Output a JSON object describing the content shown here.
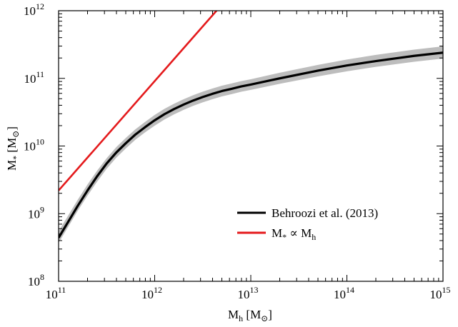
{
  "chart_data": {
    "type": "line",
    "x_scale": "log",
    "y_scale": "log",
    "xlim": [
      100000000000.0,
      1000000000000000.0
    ],
    "ylim": [
      100000000.0,
      1000000000000.0
    ],
    "x_ticks": [
      {
        "base": "10",
        "exp": "11",
        "value": 100000000000.0
      },
      {
        "base": "10",
        "exp": "12",
        "value": 1000000000000.0
      },
      {
        "base": "10",
        "exp": "13",
        "value": 10000000000000.0
      },
      {
        "base": "10",
        "exp": "14",
        "value": 100000000000000.0
      },
      {
        "base": "10",
        "exp": "15",
        "value": 1000000000000000.0
      }
    ],
    "y_ticks": [
      {
        "base": "10",
        "exp": "8",
        "value": 100000000.0
      },
      {
        "base": "10",
        "exp": "9",
        "value": 1000000000.0
      },
      {
        "base": "10",
        "exp": "10",
        "value": 10000000000.0
      },
      {
        "base": "10",
        "exp": "11",
        "value": 100000000000.0
      },
      {
        "base": "10",
        "exp": "12",
        "value": 1000000000000.0
      }
    ],
    "xlabel": {
      "main": "M",
      "sub": "h",
      "unit": " [M",
      "unit_sub": "⊙",
      "close": "]"
    },
    "ylabel": {
      "main": "M",
      "sub": "*",
      "unit": " [M",
      "unit_sub": "⊙",
      "close": "]"
    },
    "grid": false,
    "legend_position": "lower-right",
    "series": [
      {
        "name": "Behroozi et al. (2013)",
        "color": "#000000",
        "band_color": "#bdbdbd",
        "x": [
          100000000000.0,
          126000000000.0,
          158000000000.0,
          200000000000.0,
          251000000000.0,
          316000000000.0,
          398000000000.0,
          501000000000.0,
          631000000000.0,
          794000000000.0,
          1000000000000.0,
          1260000000000.0,
          1580000000000.0,
          2000000000000.0,
          2510000000000.0,
          3160000000000.0,
          3980000000000.0,
          5010000000000.0,
          6310000000000.0,
          7940000000000.0,
          10000000000000.0,
          20000000000000.0,
          50000000000000.0,
          100000000000000.0,
          200000000000000.0,
          500000000000000.0,
          1000000000000000.0
        ],
        "y": [
          440000000.0,
          760000000.0,
          1300000000.0,
          2200000000.0,
          3550000000.0,
          5500000000.0,
          8000000000.0,
          11000000000.0,
          14800000000.0,
          19000000000.0,
          24000000000.0,
          29500000000.0,
          35000000000.0,
          41000000000.0,
          47000000000.0,
          53000000000.0,
          59000000000.0,
          65000000000.0,
          70000000000.0,
          76000000000.0,
          81000000000.0,
          100000000000.0,
          130000000000.0,
          155000000000.0,
          180000000000.0,
          215000000000.0,
          240000000000.0
        ],
        "band_lower": [
          370000000.0,
          640000000.0,
          1100000000.0,
          1850000000.0,
          2950000000.0,
          4600000000.0,
          6700000000.0,
          9200000000.0,
          12400000000.0,
          15900000000.0,
          20000000000.0,
          24600000000.0,
          29200000000.0,
          34200000000.0,
          39200000000.0,
          44200000000.0,
          49200000000.0,
          54200000000.0,
          58400000000.0,
          63400000000.0,
          67600000000.0,
          83000000000.0,
          107000000000.0,
          127000000000.0,
          148000000000.0,
          176000000000.0,
          196000000000.0
        ],
        "band_upper": [
          550000000.0,
          940000000.0,
          1600000000.0,
          2700000000.0,
          4300000000.0,
          6600000000.0,
          9600000000.0,
          13200000000.0,
          17700000000.0,
          22700000000.0,
          28800000000.0,
          35400000000.0,
          42000000000.0,
          49200000000.0,
          56400000000.0,
          63600000000.0,
          70800000000.0,
          78000000000.0,
          84000000000.0,
          91000000000.0,
          97000000000.0,
          121000000000.0,
          158000000000.0,
          190000000000.0,
          222000000000.0,
          266000000000.0,
          298000000000.0
        ]
      },
      {
        "name": "M∗ ∝ Mh",
        "legend_label": {
          "main": "M",
          "sub1": "*",
          "mid": " ∝ M",
          "sub2": "h"
        },
        "color": "#e41a1c",
        "x": [
          100000000000.0,
          4400000000000.0
        ],
        "y": [
          2200000000.0,
          1000000000000.0
        ]
      }
    ]
  }
}
